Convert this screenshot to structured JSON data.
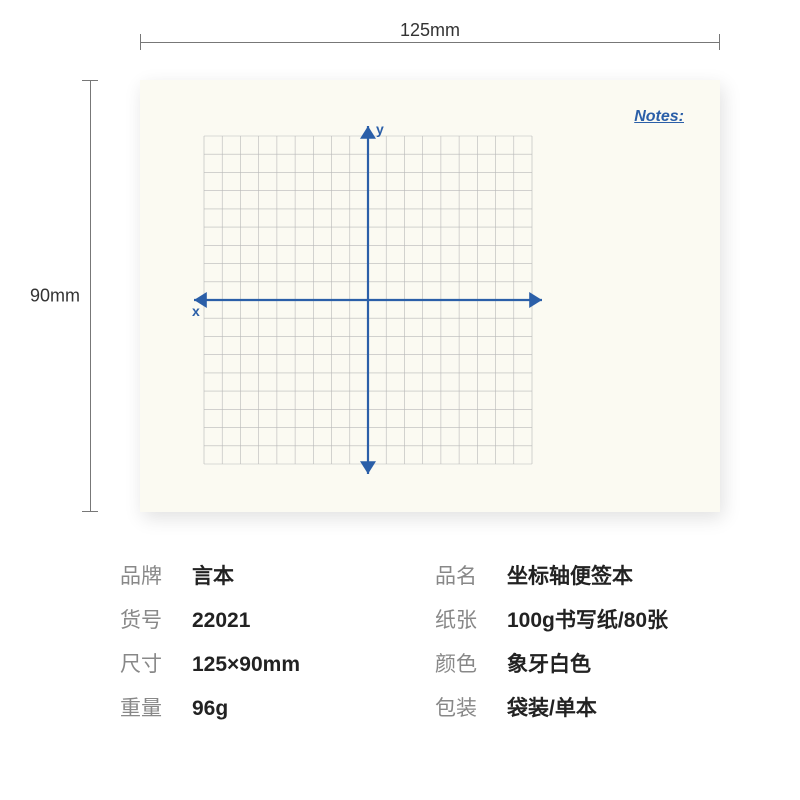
{
  "dimensions": {
    "width_label": "125mm",
    "height_label": "90mm"
  },
  "notepad": {
    "notes_label": "Notes:",
    "card_bg": "#fbfaf2",
    "chart": {
      "type": "grid-axes",
      "grid_cells": 18,
      "grid_color": "#b8b8b8",
      "grid_stroke": 0.6,
      "axis_color": "#2b5fa8",
      "axis_stroke": 2.2,
      "x_label": "x",
      "y_label": "y",
      "label_fontsize": 14,
      "arrow_size": 8
    }
  },
  "specs": [
    {
      "key": "品牌",
      "value": "言本"
    },
    {
      "key": "品名",
      "value": "坐标轴便签本"
    },
    {
      "key": "货号",
      "value": "22021"
    },
    {
      "key": "纸张",
      "value": "100g书写纸/80张"
    },
    {
      "key": "尺寸",
      "value": "125×90mm"
    },
    {
      "key": "颜色",
      "value": "象牙白色"
    },
    {
      "key": "重量",
      "value": "96g"
    },
    {
      "key": "包装",
      "value": "袋装/单本"
    }
  ],
  "colors": {
    "page_bg": "#ffffff",
    "dim_line": "#777777",
    "text_primary": "#222222",
    "text_muted": "#888888",
    "accent": "#2b5fa8"
  }
}
